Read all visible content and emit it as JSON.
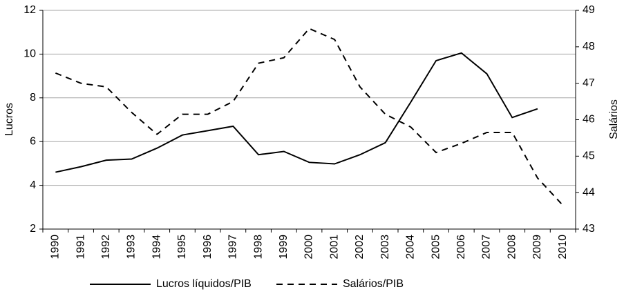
{
  "chart_data": {
    "type": "line",
    "categories": [
      "1990",
      "1991",
      "1992",
      "1993",
      "1994",
      "1995",
      "1996",
      "1997",
      "1998",
      "1999",
      "2000",
      "2001",
      "2002",
      "2003",
      "2004",
      "2005",
      "2006",
      "2007",
      "2008",
      "2009",
      "2010"
    ],
    "y_label": "Lucros",
    "y2_label": "Salários",
    "ylim": [
      2,
      12
    ],
    "yticks": [
      2,
      4,
      6,
      8,
      10,
      12
    ],
    "y2lim": [
      43,
      49
    ],
    "y2ticks": [
      43,
      44,
      45,
      46,
      47,
      48,
      49
    ],
    "grid": true,
    "legend": "bottom",
    "series": [
      {
        "name": "Lucros líquidos/PIB",
        "color": "#000000",
        "line_style": "solid",
        "values": [
          4.6,
          4.85,
          5.15,
          5.2,
          5.7,
          6.3,
          6.5,
          6.7,
          5.4,
          5.55,
          5.05,
          4.98,
          5.4,
          5.95,
          7.8,
          9.7,
          10.05,
          9.1,
          7.1,
          7.5,
          null
        ]
      },
      {
        "name": "Salários/PIB",
        "color": "#000000",
        "line_style": "dashed",
        "axis": "y2",
        "values": [
          47.28,
          47.0,
          46.9,
          46.2,
          45.6,
          46.15,
          46.15,
          46.5,
          47.55,
          47.7,
          48.5,
          48.2,
          46.9,
          46.15,
          45.8,
          45.1,
          45.35,
          45.65,
          45.65,
          44.4,
          43.65
        ]
      }
    ]
  }
}
